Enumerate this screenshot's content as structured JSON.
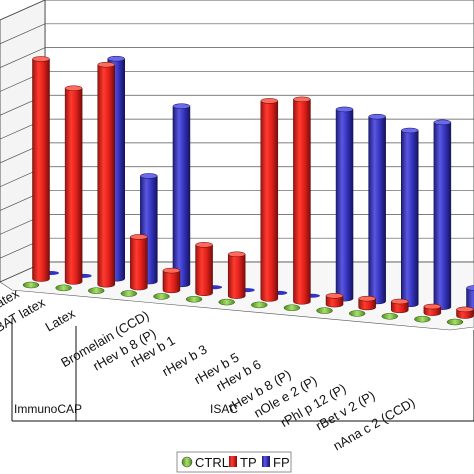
{
  "chart_data": {
    "type": "bar",
    "title": "",
    "xlabel": "",
    "ylabel": "",
    "grid": true,
    "legend_position": "bottom",
    "categories": [
      "latex",
      "BAT latex",
      "Latex",
      "Bromelain (CCD)",
      "rHev b 8 (P)",
      "rHev b 1",
      "rHev b 3",
      "rHev b 5",
      "rHev b 6",
      "rHev b 8 (P)",
      "nOle e 2 (P)",
      "rPhl p 12 (P)",
      "rBet v 2 (P)",
      "nAna c 2 (CCD)"
    ],
    "groups": [
      {
        "label": "ImmunoCAP",
        "first": 0,
        "last": 1
      },
      {
        "label": "ISAC",
        "first": 2,
        "last": 13
      }
    ],
    "series": [
      {
        "name": "CTRL",
        "color": "#7dc242",
        "values": [
          0,
          0,
          0,
          0,
          0,
          0,
          0,
          0,
          0,
          0,
          0,
          0,
          0,
          0
        ]
      },
      {
        "name": "TP",
        "color": "#e0201b",
        "values": [
          100,
          88,
          100,
          23,
          9,
          22,
          19,
          90,
          92,
          4,
          4,
          4,
          3,
          3
        ]
      },
      {
        "name": "FP",
        "color": "#3433c0",
        "values": [
          0,
          0,
          100,
          48,
          81,
          0,
          0,
          0,
          0,
          86,
          84,
          79,
          84,
          10
        ]
      }
    ],
    "ylim": [
      0,
      110
    ],
    "y_ticks_count": 11
  },
  "axis": {
    "tick_labels": [
      "latex",
      "BAT latex",
      "Latex",
      "Bromelain (CCD)",
      "rHev b 8 (P)",
      "rHev b 1",
      "rHev b 3",
      "rHev b 5",
      "rHev b 6",
      "rHev b 8 (P)",
      "nOle e 2 (P)",
      "rPhl p 12 (P)",
      "rBet v 2 (P)",
      "nAna c 2 (CCD)"
    ]
  },
  "legend": {
    "items": [
      {
        "label": "CTRL",
        "color": "#7dc242"
      },
      {
        "label": "TP",
        "color": "#e0201b"
      },
      {
        "label": "FP",
        "color": "#3433c0"
      }
    ]
  },
  "group_labels": {
    "immunocap": "ImmunoCAP",
    "isac": "ISAC"
  }
}
